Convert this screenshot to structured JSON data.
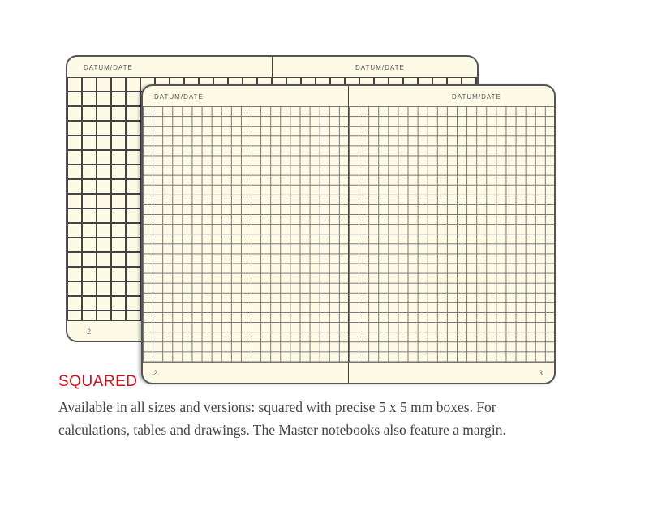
{
  "back_notebook": {
    "left_header": "DATUM/DATE",
    "right_header": "DATUM/DATE",
    "page_number": "2"
  },
  "front_notebook": {
    "left_header": "DATUM/DATE",
    "right_header": "DATUM/DATE",
    "left_page_number": "2",
    "right_page_number": "3"
  },
  "section": {
    "title": "SQUARED",
    "description": "Available in all sizes and versions: squared with precise 5 x 5 mm boxes. For calculations, tables and drawings. The Master notebooks also feature a margin."
  },
  "colors": {
    "title": "#d0101a",
    "paper": "#fdfbe6",
    "grid": "#444444"
  }
}
